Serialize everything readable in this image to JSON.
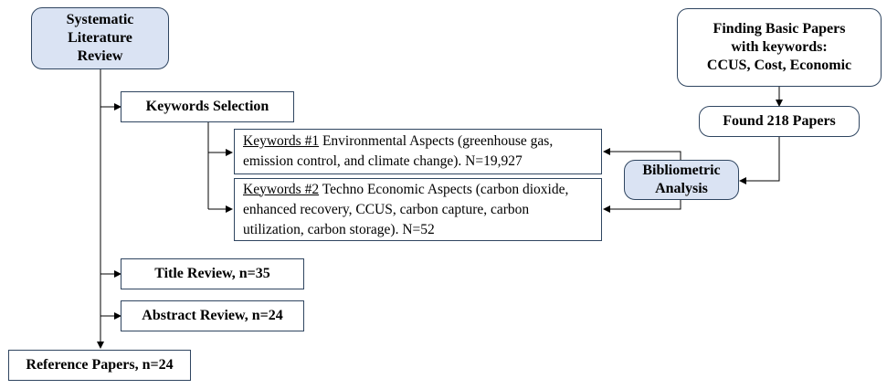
{
  "nodes": {
    "slr": "Systematic\nLiterature\nReview",
    "keywords_selection": "Keywords Selection",
    "kw1": {
      "tag": "Keywords #1",
      "text": " Environmental Aspects (greenhouse gas, emission control, and climate change). N=19,927"
    },
    "kw2": {
      "tag": "Keywords #2",
      "text": " Techno Economic Aspects (carbon dioxide, enhanced recovery, CCUS, carbon capture, carbon utilization,  carbon storage). N=52"
    },
    "title_review": "Title Review, n=35",
    "abstract_review": "Abstract Review, n=24",
    "reference_papers": "Reference Papers, n=24",
    "finding": "Finding Basic Papers\nwith keywords:\nCCUS, Cost, Economic",
    "found": "Found 218 Papers",
    "bibliometric": "Bibliometric\nAnalysis"
  }
}
